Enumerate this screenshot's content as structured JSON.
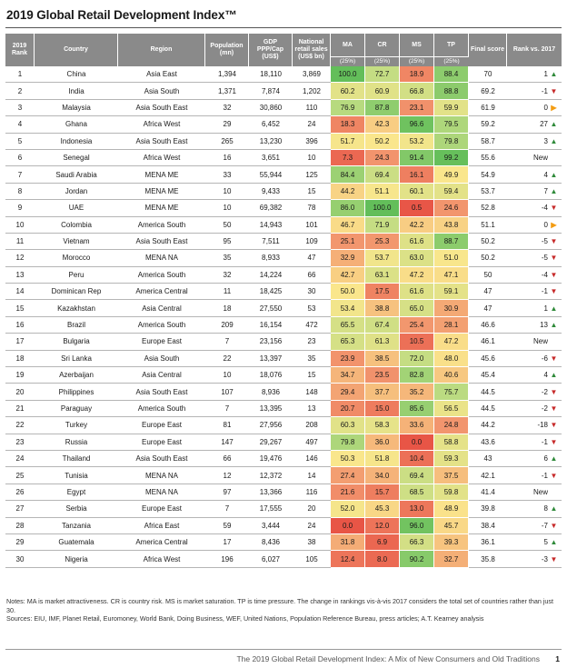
{
  "title": "2019 Global Retail Development Index™",
  "headers": {
    "rank": "2019 Rank",
    "country": "Country",
    "region": "Region",
    "population": "Population (mn)",
    "gdp": "GDP PPP/Cap (US$)",
    "sales": "National retail sales (US$ bn)",
    "ma": "MA",
    "cr": "CR",
    "ms": "MS",
    "tp": "TP",
    "final": "Final score",
    "rankvs": "Rank vs. 2017",
    "weight": "(25%)"
  },
  "rows": [
    {
      "rank": "1",
      "country": "China",
      "region": "Asia East",
      "pop": "1,394",
      "gdp": "18,110",
      "sales": "3,869",
      "ma": "100.0",
      "cr": "72.7",
      "ms": "18.9",
      "tp": "88.4",
      "final": "70",
      "chg": "1",
      "dir": "up"
    },
    {
      "rank": "2",
      "country": "India",
      "region": "Asia South",
      "pop": "1,371",
      "gdp": "7,874",
      "sales": "1,202",
      "ma": "60.2",
      "cr": "60.9",
      "ms": "66.8",
      "tp": "88.8",
      "final": "69.2",
      "chg": "-1",
      "dir": "down"
    },
    {
      "rank": "3",
      "country": "Malaysia",
      "region": "Asia South East",
      "pop": "32",
      "gdp": "30,860",
      "sales": "110",
      "ma": "76.9",
      "cr": "87.8",
      "ms": "23.1",
      "tp": "59.9",
      "final": "61.9",
      "chg": "0",
      "dir": "flat"
    },
    {
      "rank": "4",
      "country": "Ghana",
      "region": "Africa West",
      "pop": "29",
      "gdp": "6,452",
      "sales": "24",
      "ma": "18.3",
      "cr": "42.3",
      "ms": "96.6",
      "tp": "79.5",
      "final": "59.2",
      "chg": "27",
      "dir": "up"
    },
    {
      "rank": "5",
      "country": "Indonesia",
      "region": "Asia South East",
      "pop": "265",
      "gdp": "13,230",
      "sales": "396",
      "ma": "51.7",
      "cr": "50.2",
      "ms": "53.2",
      "tp": "79.8",
      "final": "58.7",
      "chg": "3",
      "dir": "up"
    },
    {
      "rank": "6",
      "country": "Senegal",
      "region": "Africa West",
      "pop": "16",
      "gdp": "3,651",
      "sales": "10",
      "ma": "7.3",
      "cr": "24.3",
      "ms": "91.4",
      "tp": "99.2",
      "final": "55.6",
      "chg": "New",
      "dir": "none"
    },
    {
      "rank": "7",
      "country": "Saudi Arabia",
      "region": "MENA ME",
      "pop": "33",
      "gdp": "55,944",
      "sales": "125",
      "ma": "84.4",
      "cr": "69.4",
      "ms": "16.1",
      "tp": "49.9",
      "final": "54.9",
      "chg": "4",
      "dir": "up"
    },
    {
      "rank": "8",
      "country": "Jordan",
      "region": "MENA ME",
      "pop": "10",
      "gdp": "9,433",
      "sales": "15",
      "ma": "44.2",
      "cr": "51.1",
      "ms": "60.1",
      "tp": "59.4",
      "final": "53.7",
      "chg": "7",
      "dir": "up"
    },
    {
      "rank": "9",
      "country": "UAE",
      "region": "MENA ME",
      "pop": "10",
      "gdp": "69,382",
      "sales": "78",
      "ma": "86.0",
      "cr": "100.0",
      "ms": "0.5",
      "tp": "24.6",
      "final": "52.8",
      "chg": "-4",
      "dir": "down"
    },
    {
      "rank": "10",
      "country": "Colombia",
      "region": "America South",
      "pop": "50",
      "gdp": "14,943",
      "sales": "101",
      "ma": "46.7",
      "cr": "71.9",
      "ms": "42.2",
      "tp": "43.8",
      "final": "51.1",
      "chg": "0",
      "dir": "flat"
    },
    {
      "rank": "11",
      "country": "Vietnam",
      "region": "Asia South East",
      "pop": "95",
      "gdp": "7,511",
      "sales": "109",
      "ma": "25.1",
      "cr": "25.3",
      "ms": "61.6",
      "tp": "88.7",
      "final": "50.2",
      "chg": "-5",
      "dir": "down"
    },
    {
      "rank": "12",
      "country": "Morocco",
      "region": "MENA NA",
      "pop": "35",
      "gdp": "8,933",
      "sales": "47",
      "ma": "32.9",
      "cr": "53.7",
      "ms": "63.0",
      "tp": "51.0",
      "final": "50.2",
      "chg": "-5",
      "dir": "down"
    },
    {
      "rank": "13",
      "country": "Peru",
      "region": "America South",
      "pop": "32",
      "gdp": "14,224",
      "sales": "66",
      "ma": "42.7",
      "cr": "63.1",
      "ms": "47.2",
      "tp": "47.1",
      "final": "50",
      "chg": "-4",
      "dir": "down"
    },
    {
      "rank": "14",
      "country": "Dominican Rep",
      "region": "America Central",
      "pop": "11",
      "gdp": "18,425",
      "sales": "30",
      "ma": "50.0",
      "cr": "17.5",
      "ms": "61.6",
      "tp": "59.1",
      "final": "47",
      "chg": "-1",
      "dir": "down"
    },
    {
      "rank": "15",
      "country": "Kazakhstan",
      "region": "Asia Central",
      "pop": "18",
      "gdp": "27,550",
      "sales": "53",
      "ma": "53.4",
      "cr": "38.8",
      "ms": "65.0",
      "tp": "30.9",
      "final": "47",
      "chg": "1",
      "dir": "up"
    },
    {
      "rank": "16",
      "country": "Brazil",
      "region": "America South",
      "pop": "209",
      "gdp": "16,154",
      "sales": "472",
      "ma": "65.5",
      "cr": "67.4",
      "ms": "25.4",
      "tp": "28.1",
      "final": "46.6",
      "chg": "13",
      "dir": "up"
    },
    {
      "rank": "17",
      "country": "Bulgaria",
      "region": "Europe East",
      "pop": "7",
      "gdp": "23,156",
      "sales": "23",
      "ma": "65.3",
      "cr": "61.3",
      "ms": "10.5",
      "tp": "47.2",
      "final": "46.1",
      "chg": "New",
      "dir": "none"
    },
    {
      "rank": "18",
      "country": "Sri Lanka",
      "region": "Asia South",
      "pop": "22",
      "gdp": "13,397",
      "sales": "35",
      "ma": "23.9",
      "cr": "38.5",
      "ms": "72.0",
      "tp": "48.0",
      "final": "45.6",
      "chg": "-6",
      "dir": "down"
    },
    {
      "rank": "19",
      "country": "Azerbaijan",
      "region": "Asia Central",
      "pop": "10",
      "gdp": "18,076",
      "sales": "15",
      "ma": "34.7",
      "cr": "23.5",
      "ms": "82.8",
      "tp": "40.6",
      "final": "45.4",
      "chg": "4",
      "dir": "up"
    },
    {
      "rank": "20",
      "country": "Philippines",
      "region": "Asia South East",
      "pop": "107",
      "gdp": "8,936",
      "sales": "148",
      "ma": "29.4",
      "cr": "37.7",
      "ms": "35.2",
      "tp": "75.7",
      "final": "44.5",
      "chg": "-2",
      "dir": "down"
    },
    {
      "rank": "21",
      "country": "Paraguay",
      "region": "America South",
      "pop": "7",
      "gdp": "13,395",
      "sales": "13",
      "ma": "20.7",
      "cr": "15.0",
      "ms": "85.6",
      "tp": "56.5",
      "final": "44.5",
      "chg": "-2",
      "dir": "down"
    },
    {
      "rank": "22",
      "country": "Turkey",
      "region": "Europe East",
      "pop": "81",
      "gdp": "27,956",
      "sales": "208",
      "ma": "60.3",
      "cr": "58.3",
      "ms": "33.6",
      "tp": "24.8",
      "final": "44.2",
      "chg": "-18",
      "dir": "down"
    },
    {
      "rank": "23",
      "country": "Russia",
      "region": "Europe East",
      "pop": "147",
      "gdp": "29,267",
      "sales": "497",
      "ma": "79.8",
      "cr": "36.0",
      "ms": "0.0",
      "tp": "58.8",
      "final": "43.6",
      "chg": "-1",
      "dir": "down"
    },
    {
      "rank": "24",
      "country": "Thailand",
      "region": "Asia South East",
      "pop": "66",
      "gdp": "19,476",
      "sales": "146",
      "ma": "50.3",
      "cr": "51.8",
      "ms": "10.4",
      "tp": "59.3",
      "final": "43",
      "chg": "6",
      "dir": "up"
    },
    {
      "rank": "25",
      "country": "Tunisia",
      "region": "MENA NA",
      "pop": "12",
      "gdp": "12,372",
      "sales": "14",
      "ma": "27.4",
      "cr": "34.0",
      "ms": "69.4",
      "tp": "37.5",
      "final": "42.1",
      "chg": "-1",
      "dir": "down"
    },
    {
      "rank": "26",
      "country": "Egypt",
      "region": "MENA NA",
      "pop": "97",
      "gdp": "13,366",
      "sales": "116",
      "ma": "21.6",
      "cr": "15.7",
      "ms": "68.5",
      "tp": "59.8",
      "final": "41.4",
      "chg": "New",
      "dir": "none"
    },
    {
      "rank": "27",
      "country": "Serbia",
      "region": "Europe East",
      "pop": "7",
      "gdp": "17,555",
      "sales": "20",
      "ma": "52.0",
      "cr": "45.3",
      "ms": "13.0",
      "tp": "48.9",
      "final": "39.8",
      "chg": "8",
      "dir": "up"
    },
    {
      "rank": "28",
      "country": "Tanzania",
      "region": "Africa East",
      "pop": "59",
      "gdp": "3,444",
      "sales": "24",
      "ma": "0.0",
      "cr": "12.0",
      "ms": "96.0",
      "tp": "45.7",
      "final": "38.4",
      "chg": "-7",
      "dir": "down"
    },
    {
      "rank": "29",
      "country": "Guatemala",
      "region": "America Central",
      "pop": "17",
      "gdp": "8,436",
      "sales": "38",
      "ma": "31.8",
      "cr": "6.9",
      "ms": "66.3",
      "tp": "39.3",
      "final": "36.1",
      "chg": "5",
      "dir": "up"
    },
    {
      "rank": "30",
      "country": "Nigeria",
      "region": "Africa West",
      "pop": "196",
      "gdp": "6,027",
      "sales": "105",
      "ma": "12.4",
      "cr": "8.0",
      "ms": "90.2",
      "tp": "32.7",
      "final": "35.8",
      "chg": "-3",
      "dir": "down"
    }
  ],
  "notes": {
    "line1": "Notes: MA is market attractiveness. CR is country risk. MS is market saturation. TP is time pressure. The change in rankings vis-à-vis 2017 considers the total set of countries rather than just 30.",
    "line2": "Sources: EIU, IMF, Planet Retail, Euromoney, World Bank, Doing Business, WEF, United Nations, Population Reference Bureau, press articles; A.T. Kearney analysis"
  },
  "footer": {
    "text": "The 2019 Global Retail Development Index: A Mix of New Consumers and Old Traditions",
    "page": "1"
  },
  "colors": {
    "header_bg": "#8a8a8a",
    "arrow_up": "#2f8a3a",
    "arrow_down": "#c62828",
    "arrow_flat": "#f39c12"
  }
}
